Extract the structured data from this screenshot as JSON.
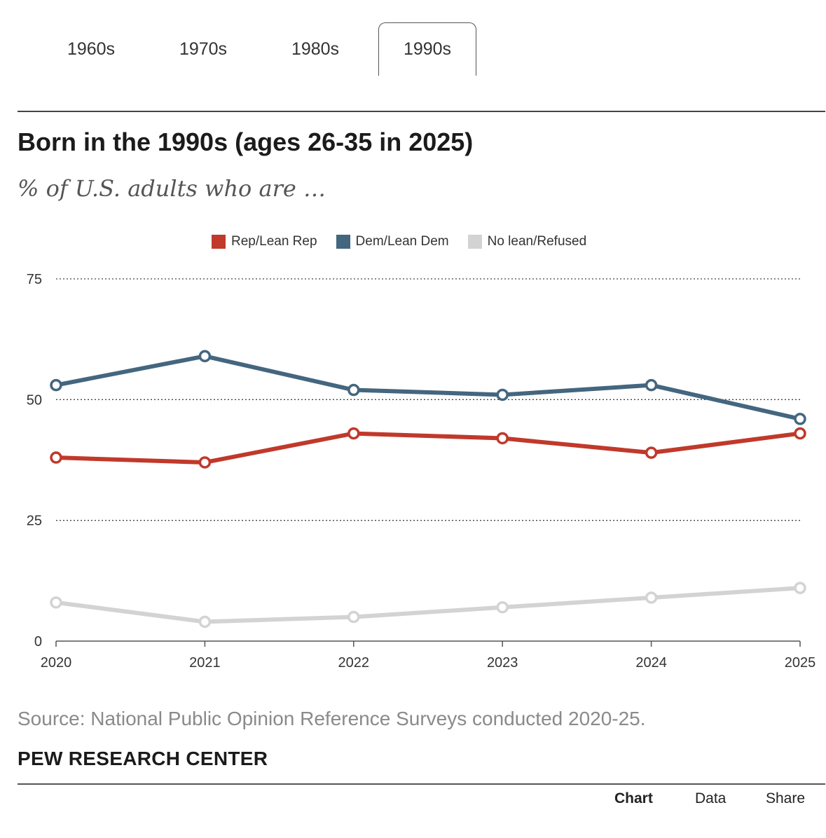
{
  "tabs": [
    {
      "label": "1960s",
      "active": false
    },
    {
      "label": "1970s",
      "active": false
    },
    {
      "label": "1980s",
      "active": false
    },
    {
      "label": "1990s",
      "active": true
    }
  ],
  "title": "Born in the 1990s (ages 26-35 in 2025)",
  "subtitle": "% of U.S. adults who are …",
  "legend": [
    {
      "label": "Rep/Lean Rep",
      "color": "#c0392b"
    },
    {
      "label": "Dem/Lean Dem",
      "color": "#44667f"
    },
    {
      "label": "No lean/Refused",
      "color": "#d3d3d3"
    }
  ],
  "chart_data": {
    "type": "line",
    "x": [
      "2020",
      "2021",
      "2022",
      "2023",
      "2024",
      "2025"
    ],
    "ylim": [
      0,
      75
    ],
    "yticks": [
      "0",
      "25",
      "50",
      "75"
    ],
    "grid": true,
    "legend_position": "top-center",
    "series": [
      {
        "name": "Dem/Lean Dem",
        "color": "#44667f",
        "values": [
          53,
          59,
          52,
          51,
          53,
          46
        ]
      },
      {
        "name": "Rep/Lean Rep",
        "color": "#c0392b",
        "values": [
          38,
          37,
          43,
          42,
          39,
          43
        ]
      },
      {
        "name": "No lean/Refused",
        "color": "#d3d3d3",
        "values": [
          8,
          4,
          5,
          7,
          9,
          11
        ]
      }
    ]
  },
  "source": "Source: National Public Opinion Reference Surveys conducted 2020-25.",
  "brand": "PEW RESEARCH CENTER",
  "bottom_tabs": [
    {
      "label": "Chart",
      "active": true
    },
    {
      "label": "Data",
      "active": false
    },
    {
      "label": "Share",
      "active": false
    }
  ]
}
